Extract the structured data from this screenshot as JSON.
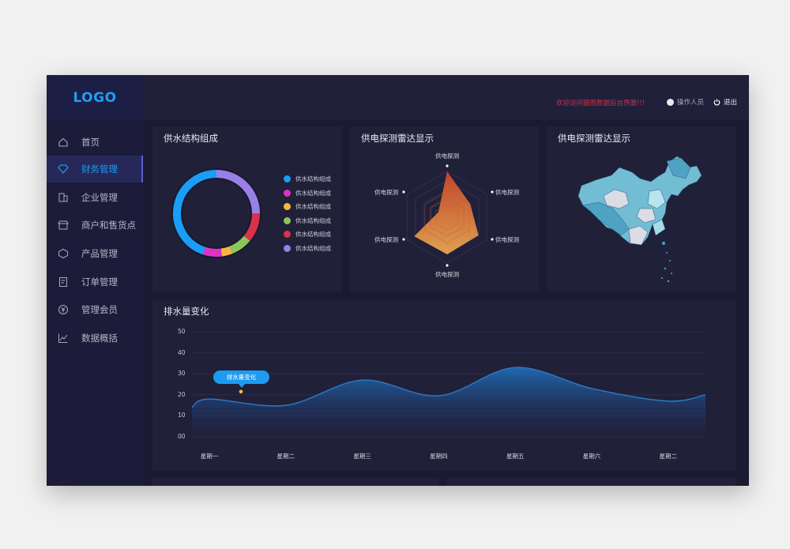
{
  "sidebar": {
    "logo": "LOGO",
    "items": [
      {
        "label": "首页",
        "icon": "home-icon"
      },
      {
        "label": "财务管理",
        "icon": "diamond-icon",
        "active": true
      },
      {
        "label": "企业管理",
        "icon": "building-icon"
      },
      {
        "label": "商户和售货点",
        "icon": "store-icon"
      },
      {
        "label": "产品管理",
        "icon": "box-icon"
      },
      {
        "label": "订单管理",
        "icon": "document-icon"
      },
      {
        "label": "管理会员",
        "icon": "yen-icon"
      },
      {
        "label": "数据概括",
        "icon": "line-chart-icon"
      }
    ]
  },
  "header": {
    "welcome": "欢迎访问摄图数据后台界面!!!",
    "operator": "操作人员",
    "logout": "退出"
  },
  "colors": {
    "accent": "#1e9bf0",
    "welcome": "#d0304d"
  },
  "chart_data": [
    {
      "type": "pie",
      "title": "供水结构组成",
      "donut": true,
      "labels": [
        "供水结构组成",
        "供水结构组成",
        "供水结构组成",
        "供水结构组成",
        "供水结构组成",
        "供水结构组成"
      ],
      "values": [
        45,
        7,
        4,
        8,
        11,
        25
      ],
      "colors": [
        "#1a9ef5",
        "#e032c0",
        "#f6b740",
        "#8cc65a",
        "#d9324a",
        "#9a80e6"
      ]
    },
    {
      "type": "radar",
      "title": "供电探测雷达显示",
      "axes": [
        "供电探测",
        "供电探测",
        "供电探测",
        "供电探测",
        "供电探测",
        "供电探测"
      ],
      "values": [
        100,
        58,
        79,
        81,
        83,
        22
      ],
      "max": 100
    },
    {
      "type": "map",
      "title": "供电探测雷达显示"
    },
    {
      "type": "area",
      "title": "排水量变化",
      "categories": [
        "星期一",
        "星期二",
        "星期三",
        "星期四",
        "星期五",
        "星期六",
        "星期二"
      ],
      "values": [
        18,
        15,
        27,
        19.5,
        33,
        23,
        17
      ],
      "yticks": [
        "50",
        "40",
        "30",
        "20",
        "10",
        "00"
      ],
      "ylim": [
        0,
        50
      ],
      "tooltip": "排水量变化",
      "grid": true
    }
  ]
}
